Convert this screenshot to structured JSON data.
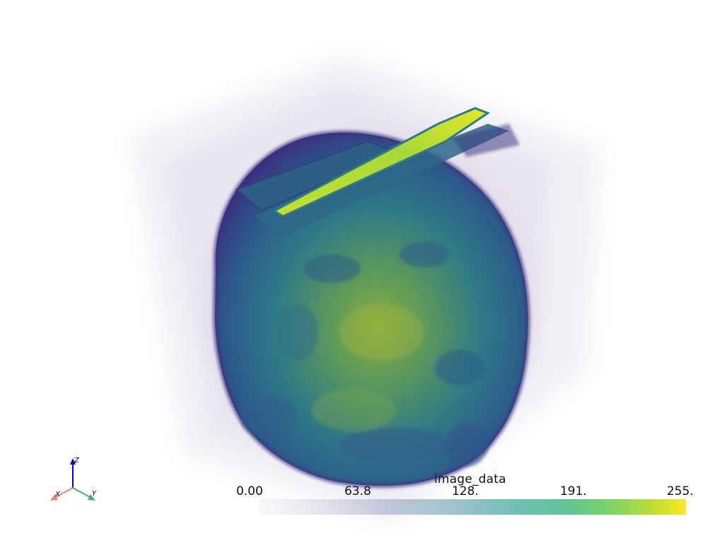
{
  "scene": {
    "subject": "volume rendering of head",
    "colormap": "viridis",
    "background": "#ffffff"
  },
  "scalar_bar": {
    "title": "image_data",
    "ticks": [
      "0.00",
      "63.8",
      "128.",
      "191.",
      "255."
    ],
    "range": [
      0,
      255
    ],
    "colors": [
      "#440154",
      "#3b528b",
      "#21918c",
      "#5ec962",
      "#fde725"
    ]
  },
  "axes_widget": {
    "x_label": "X",
    "y_label": "Y",
    "z_label": "Z",
    "x_color": "#f08070",
    "y_color": "#3cb371",
    "z_color": "#0000dd"
  }
}
